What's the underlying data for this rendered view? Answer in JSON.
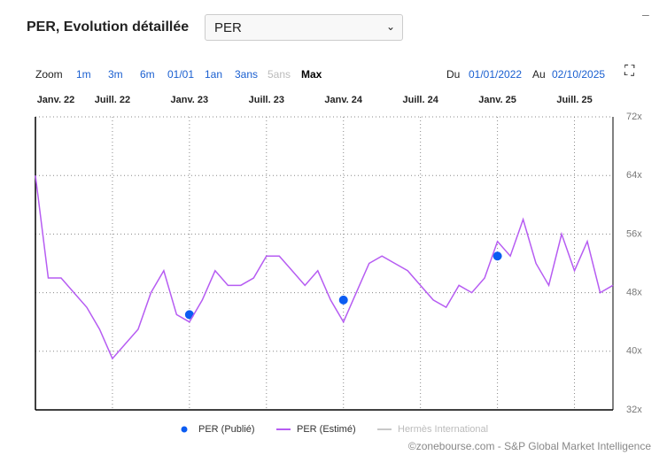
{
  "ui": {
    "title": "PER, Evolution détaillée",
    "select": "PER",
    "minimize": "–",
    "zoom": {
      "label": "Zoom",
      "options": [
        "1m",
        "3m",
        "6m",
        "01/01",
        "1an",
        "3ans",
        "5ans",
        "Max"
      ]
    },
    "range": {
      "from_label": "Du",
      "from": "01/01/2022",
      "to_label": "Au",
      "to": "02/10/2025"
    },
    "credit": "©zonebourse.com - S&P Global Market Intelligence"
  },
  "chart_data": {
    "type": "line",
    "xlim": [
      "2022-01",
      "2025-10"
    ],
    "xticks": [
      {
        "value": "2022-01",
        "label": "Janv. 22"
      },
      {
        "value": "2022-07",
        "label": "Juill. 22"
      },
      {
        "value": "2023-01",
        "label": "Janv. 23"
      },
      {
        "value": "2023-07",
        "label": "Juill. 23"
      },
      {
        "value": "2024-01",
        "label": "Janv. 24"
      },
      {
        "value": "2024-07",
        "label": "Juill. 24"
      },
      {
        "value": "2025-01",
        "label": "Janv. 25"
      },
      {
        "value": "2025-07",
        "label": "Juill. 25"
      }
    ],
    "ylim": [
      32,
      72
    ],
    "yticks": [
      {
        "value": 32,
        "label": "32x"
      },
      {
        "value": 40,
        "label": "40x"
      },
      {
        "value": 48,
        "label": "48x"
      },
      {
        "value": 56,
        "label": "56x"
      },
      {
        "value": 64,
        "label": "64x"
      },
      {
        "value": 72,
        "label": "72x"
      }
    ],
    "grid": true,
    "series": [
      {
        "name": "PER (Publié)",
        "type": "scatter",
        "color": "#0b5cf2",
        "x": [
          "2023-01",
          "2024-01",
          "2025-01"
        ],
        "values": [
          45,
          47,
          53
        ]
      },
      {
        "name": "PER (Estimé)",
        "type": "line",
        "color": "#b65cf2",
        "x": [
          "2022-01",
          "2022-02",
          "2022-03",
          "2022-04",
          "2022-05",
          "2022-06",
          "2022-07",
          "2022-08",
          "2022-09",
          "2022-10",
          "2022-11",
          "2022-12",
          "2023-01",
          "2023-02",
          "2023-03",
          "2023-04",
          "2023-05",
          "2023-06",
          "2023-07",
          "2023-08",
          "2023-09",
          "2023-10",
          "2023-11",
          "2023-12",
          "2024-01",
          "2024-02",
          "2024-03",
          "2024-04",
          "2024-05",
          "2024-06",
          "2024-07",
          "2024-08",
          "2024-09",
          "2024-10",
          "2024-11",
          "2024-12",
          "2025-01",
          "2025-02",
          "2025-03",
          "2025-04",
          "2025-05",
          "2025-06",
          "2025-07",
          "2025-08",
          "2025-09",
          "2025-10"
        ],
        "values": [
          64,
          50,
          50,
          48,
          46,
          43,
          39,
          41,
          43,
          48,
          51,
          45,
          44,
          47,
          51,
          49,
          49,
          50,
          53,
          53,
          51,
          49,
          51,
          47,
          44,
          48,
          52,
          53,
          52,
          51,
          49,
          47,
          46,
          49,
          48,
          50,
          55,
          53,
          58,
          52,
          49,
          56,
          51,
          55,
          48,
          49
        ]
      },
      {
        "name": "Hermès International",
        "type": "line",
        "color": "#c8c8c8",
        "x": [],
        "values": []
      }
    ]
  }
}
